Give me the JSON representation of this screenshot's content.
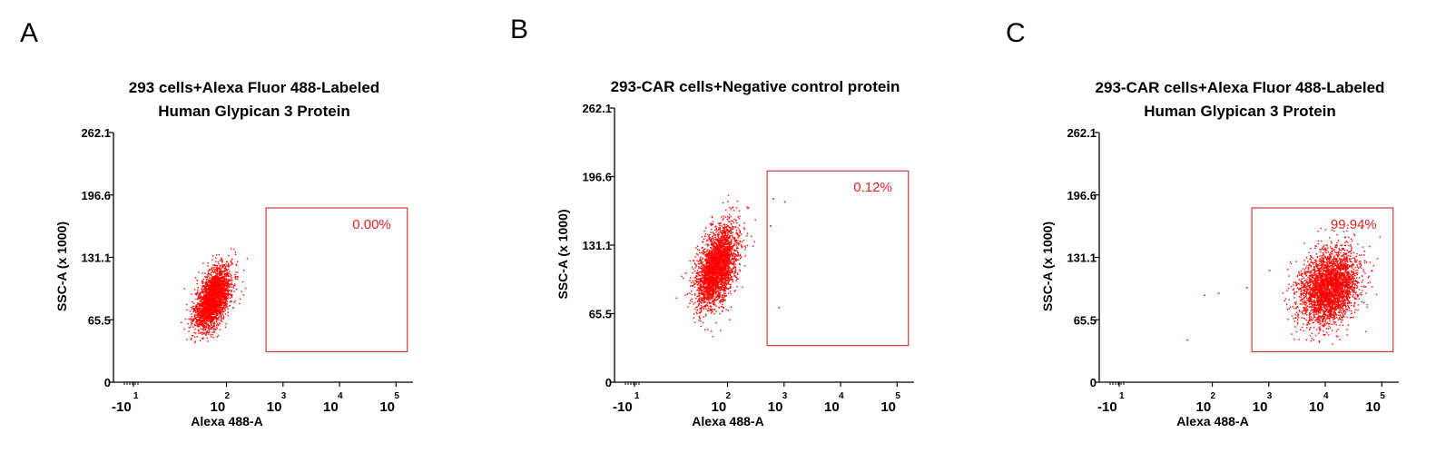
{
  "colors": {
    "points": "#ff0000",
    "gate": "#c03030",
    "gate_text": "#d42020",
    "axis": "#000000"
  },
  "chart_data": [
    {
      "type": "scatter",
      "panel_label": "A",
      "title_lines": [
        "293 cells+Alexa Fluor 488-Labeled",
        "Human Glypican 3 Protein"
      ],
      "xlabel": "Alexa 488-A",
      "ylabel": "SSC-A (x 1000)",
      "xscale": "biexponential",
      "xlim_log": [
        0,
        5.3
      ],
      "x_ticks": [
        {
          "base": "-10",
          "exp": "1"
        },
        {
          "base": "10",
          "exp": "2"
        },
        {
          "base": "10",
          "exp": "3"
        },
        {
          "base": "10",
          "exp": "4"
        },
        {
          "base": "10",
          "exp": "5"
        }
      ],
      "y_ticks": [
        "0",
        "65.5",
        "131.1",
        "196.6",
        "262.1"
      ],
      "ylim": [
        0,
        262.1
      ],
      "gate": {
        "x_log": [
          2.7,
          5.2
        ],
        "y": [
          32,
          183
        ],
        "label": "0.00%"
      },
      "population": {
        "center_x_log": 1.75,
        "center_y": 88,
        "sd_x_log": 0.16,
        "sd_y": 19,
        "tilt": 0.9,
        "n": 2600
      },
      "outliers": []
    },
    {
      "type": "scatter",
      "panel_label": "B",
      "title_lines": [
        "293-CAR cells+Negative control protein"
      ],
      "xlabel": "Alexa 488-A",
      "ylabel": "SSC-A (x 1000)",
      "xscale": "biexponential",
      "xlim_log": [
        0,
        5.3
      ],
      "x_ticks": [
        {
          "base": "-10",
          "exp": "1"
        },
        {
          "base": "10",
          "exp": "2"
        },
        {
          "base": "10",
          "exp": "3"
        },
        {
          "base": "10",
          "exp": "4"
        },
        {
          "base": "10",
          "exp": "5"
        }
      ],
      "y_ticks": [
        "0",
        "65.5",
        "131.1",
        "196.6",
        "262.1"
      ],
      "ylim": [
        0,
        262.1
      ],
      "gate": {
        "x_log": [
          2.7,
          5.2
        ],
        "y": [
          35,
          202
        ],
        "label": "0.12%"
      },
      "population": {
        "center_x_log": 1.8,
        "center_y": 110,
        "sd_x_log": 0.18,
        "sd_y": 23,
        "tilt": 0.8,
        "n": 3000
      },
      "outliers": [
        [
          2.8,
          176
        ],
        [
          3.0,
          173
        ],
        [
          2.75,
          150
        ],
        [
          2.9,
          72
        ],
        [
          1.25,
          105
        ]
      ]
    },
    {
      "type": "scatter",
      "panel_label": "C",
      "title_lines": [
        "293-CAR cells+Alexa Fluor 488-Labeled",
        "Human Glypican 3 Protein"
      ],
      "xlabel": "Alexa 488-A",
      "ylabel": "SSC-A (x 1000)",
      "xscale": "biexponential",
      "xlim_log": [
        0,
        5.3
      ],
      "x_ticks": [
        {
          "base": "-10",
          "exp": "1"
        },
        {
          "base": "10",
          "exp": "2"
        },
        {
          "base": "10",
          "exp": "3"
        },
        {
          "base": "10",
          "exp": "4"
        },
        {
          "base": "10",
          "exp": "5"
        }
      ],
      "y_ticks": [
        "0",
        "65.5",
        "131.1",
        "196.6",
        "262.1"
      ],
      "ylim": [
        0,
        262.1
      ],
      "gate": {
        "x_log": [
          2.7,
          5.2
        ],
        "y": [
          32,
          183
        ],
        "label": "99.94%"
      },
      "population": {
        "center_x_log": 4.05,
        "center_y": 100,
        "sd_x_log": 0.26,
        "sd_y": 25,
        "tilt": 0.4,
        "n": 3200
      },
      "outliers": [
        [
          1.85,
          92
        ],
        [
          2.1,
          94
        ],
        [
          1.55,
          45
        ],
        [
          2.6,
          100
        ],
        [
          3.0,
          118
        ]
      ]
    }
  ]
}
